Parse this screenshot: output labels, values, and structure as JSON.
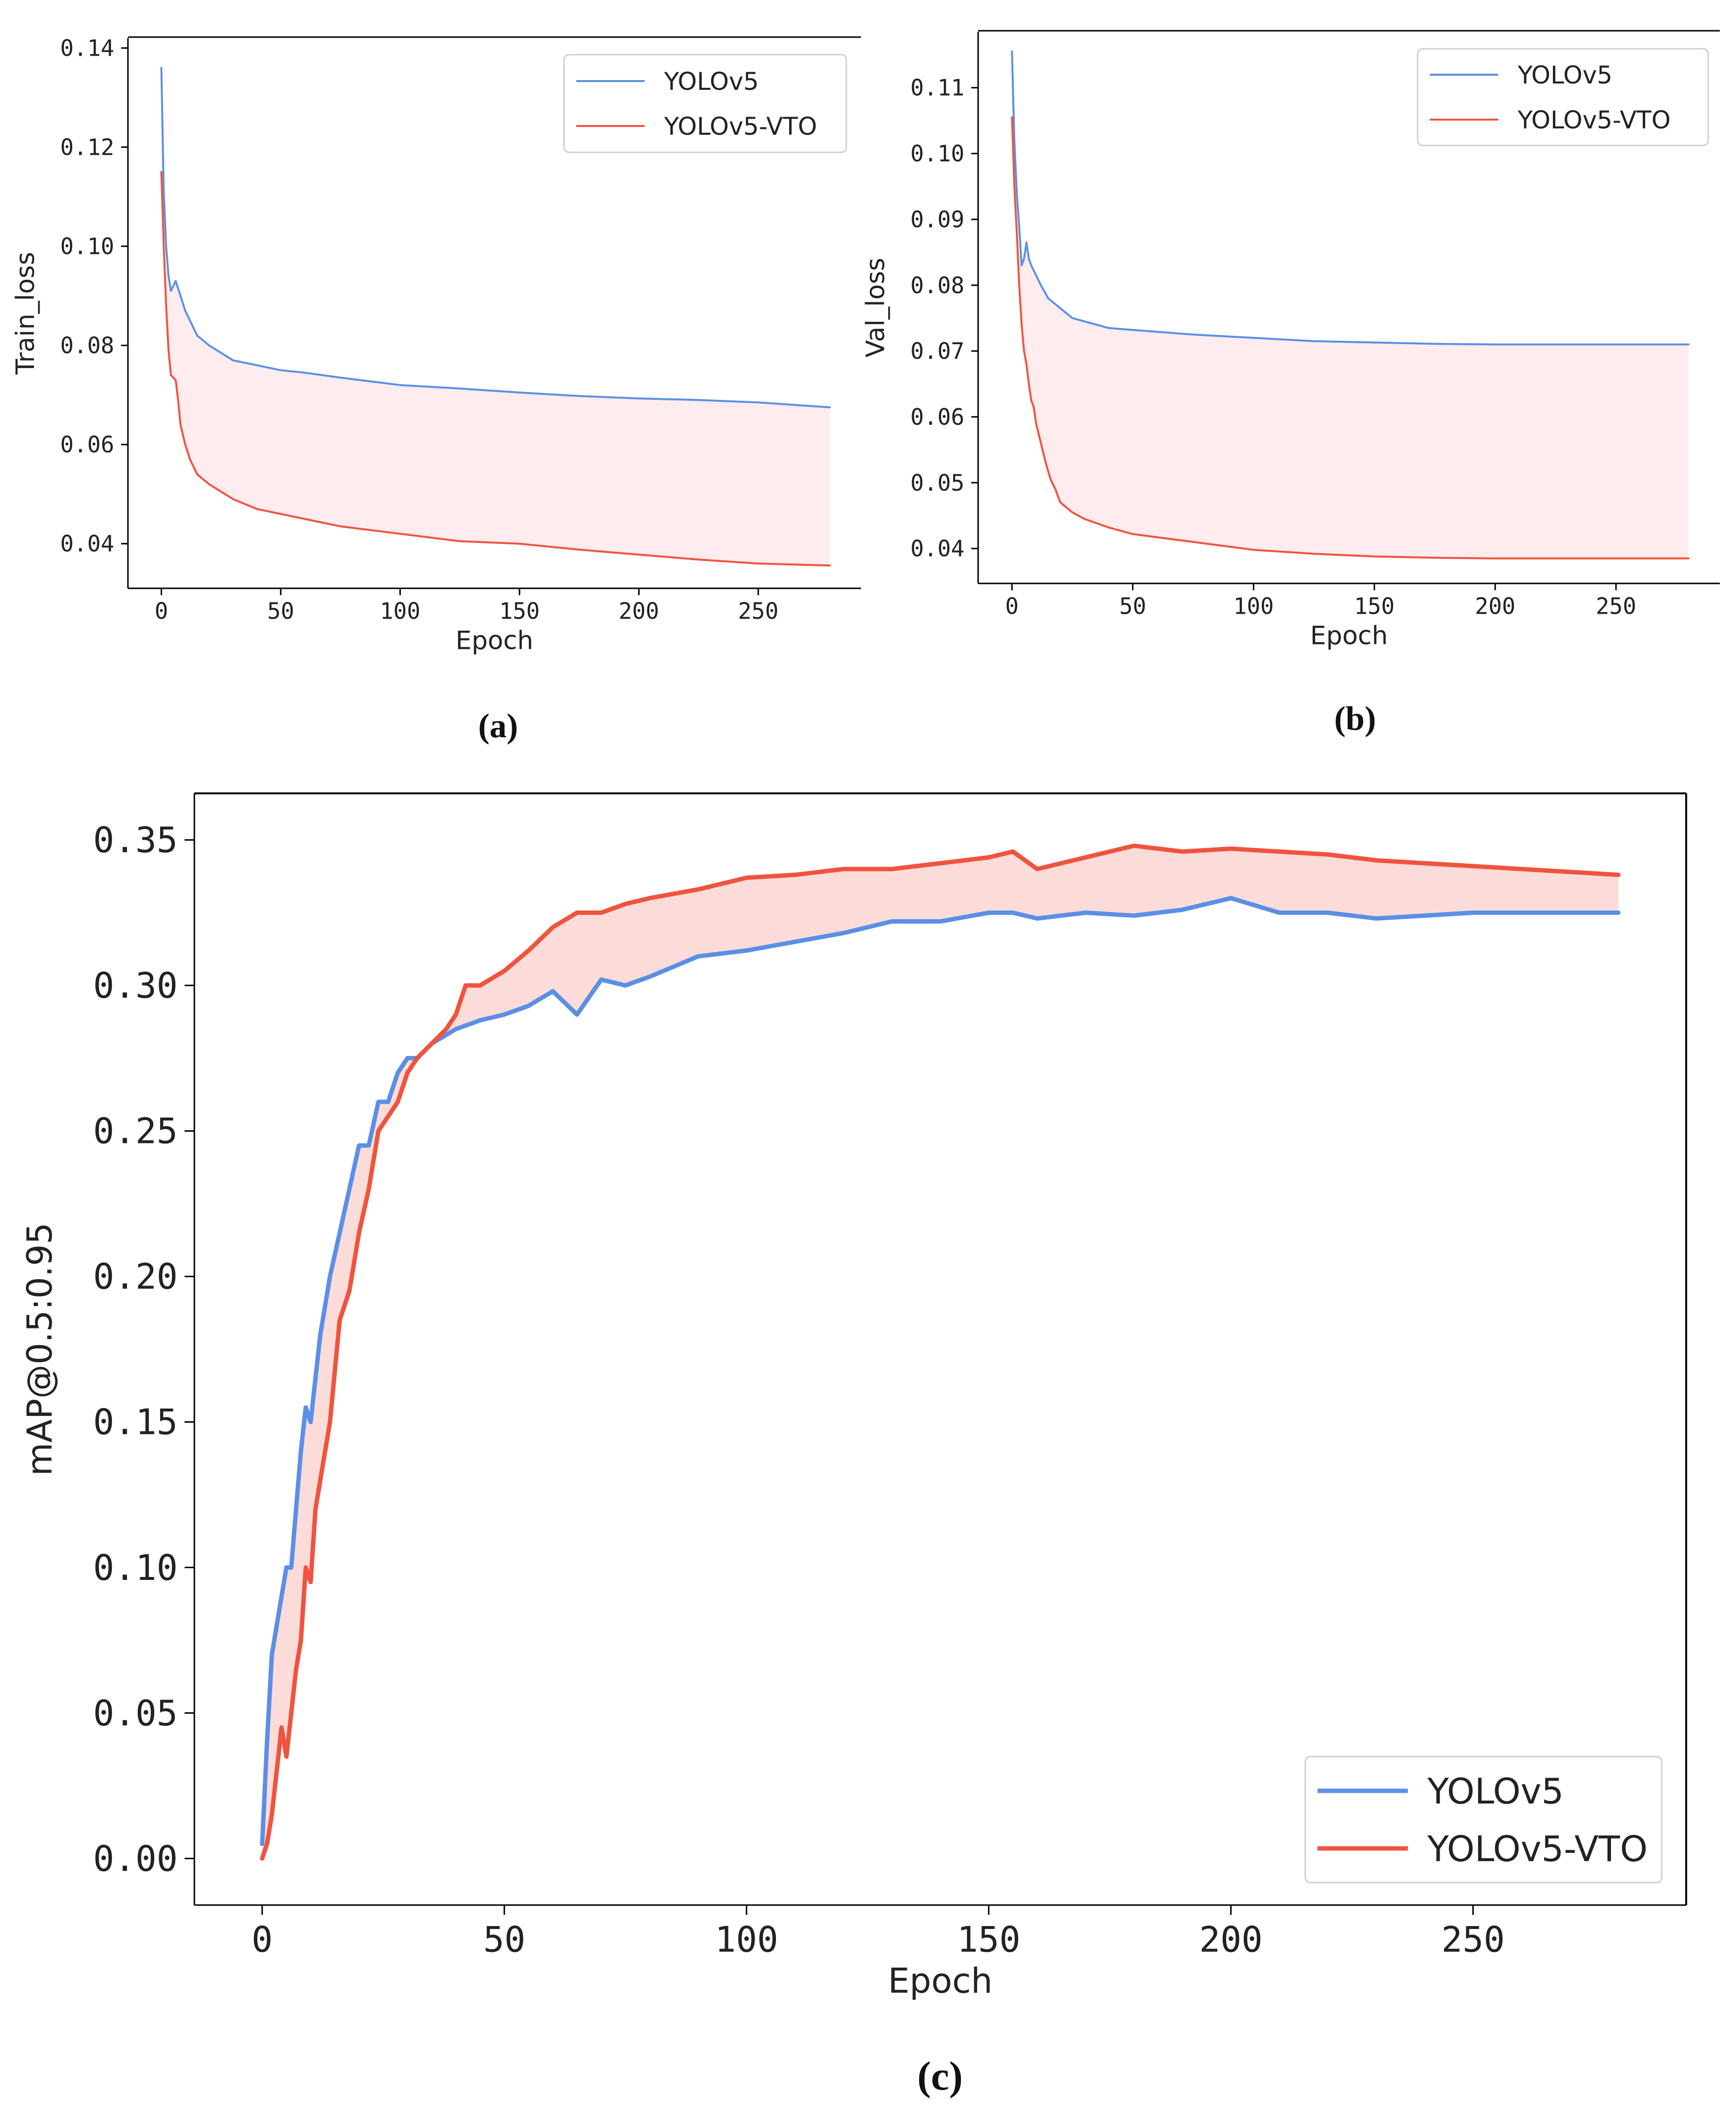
{
  "colors": {
    "yolov5": "#5b8fe6",
    "vto": "#f0533e",
    "fill_small": "#fde5e8",
    "fill_large": "#fbd0cc"
  },
  "chart_data": [
    {
      "id": "a",
      "type": "line",
      "caption": "(a)",
      "xlabel": "Epoch",
      "ylabel": "Train_loss",
      "xlim": [
        -14,
        293
      ],
      "ylim": [
        0.031,
        0.142
      ],
      "xticks": [
        0,
        50,
        100,
        150,
        200,
        250
      ],
      "xtick_labels": [
        "0",
        "50",
        "100",
        "150",
        "200",
        "250"
      ],
      "yticks": [
        0.04,
        0.06,
        0.08,
        0.1,
        0.12,
        0.14
      ],
      "ytick_labels": [
        "0.04",
        "0.06",
        "0.08",
        "0.10",
        "0.12",
        "0.14"
      ],
      "legend": {
        "placement": "top-right",
        "entries": [
          "YOLOv5",
          "YOLOv5-VTO"
        ]
      },
      "fill_between": true,
      "series": [
        {
          "name": "YOLOv5",
          "x": [
            0,
            1,
            2,
            3,
            4,
            5,
            6,
            8,
            10,
            15,
            20,
            30,
            40,
            50,
            60,
            75,
            100,
            125,
            150,
            175,
            200,
            225,
            250,
            265,
            280
          ],
          "values": [
            0.136,
            0.111,
            0.1,
            0.094,
            0.091,
            0.092,
            0.093,
            0.09,
            0.087,
            0.082,
            0.08,
            0.077,
            0.076,
            0.075,
            0.0745,
            0.0735,
            0.072,
            0.0713,
            0.0705,
            0.0698,
            0.0693,
            0.069,
            0.0685,
            0.068,
            0.0675
          ]
        },
        {
          "name": "YOLOv5-VTO",
          "x": [
            0,
            1,
            2,
            3,
            4,
            5,
            6,
            7,
            8,
            10,
            12,
            15,
            20,
            25,
            30,
            40,
            50,
            75,
            100,
            125,
            150,
            175,
            200,
            225,
            250,
            265,
            280
          ],
          "values": [
            0.115,
            0.1,
            0.088,
            0.079,
            0.074,
            0.0735,
            0.073,
            0.069,
            0.064,
            0.06,
            0.057,
            0.054,
            0.052,
            0.0505,
            0.049,
            0.047,
            0.046,
            0.0435,
            0.042,
            0.0405,
            0.04,
            0.0388,
            0.0378,
            0.0368,
            0.036,
            0.0358,
            0.0356
          ]
        }
      ]
    },
    {
      "id": "b",
      "type": "line",
      "caption": "(b)",
      "xlabel": "Epoch",
      "ylabel": "Val_loss",
      "xlim": [
        -14,
        293
      ],
      "ylim": [
        0.0347,
        0.1185
      ],
      "xticks": [
        0,
        50,
        100,
        150,
        200,
        250
      ],
      "xtick_labels": [
        "0",
        "50",
        "100",
        "150",
        "200",
        "250"
      ],
      "yticks": [
        0.04,
        0.05,
        0.06,
        0.07,
        0.08,
        0.09,
        0.1,
        0.11
      ],
      "ytick_labels": [
        "0.04",
        "0.05",
        "0.06",
        "0.07",
        "0.08",
        "0.09",
        "0.10",
        "0.11"
      ],
      "legend": {
        "placement": "top-right",
        "entries": [
          "YOLOv5",
          "YOLOv5-VTO"
        ]
      },
      "fill_between": true,
      "series": [
        {
          "name": "YOLOv5",
          "x": [
            0,
            1,
            2,
            3,
            4,
            5,
            6,
            7,
            8,
            10,
            12,
            15,
            20,
            25,
            30,
            40,
            50,
            75,
            100,
            125,
            150,
            175,
            200,
            225,
            250,
            280
          ],
          "values": [
            0.1155,
            0.102,
            0.094,
            0.089,
            0.083,
            0.084,
            0.0865,
            0.084,
            0.083,
            0.0815,
            0.08,
            0.078,
            0.0765,
            0.075,
            0.0745,
            0.0735,
            0.0732,
            0.0725,
            0.072,
            0.0715,
            0.0713,
            0.0711,
            0.071,
            0.071,
            0.071,
            0.071
          ]
        },
        {
          "name": "YOLOv5-VTO",
          "x": [
            0,
            1,
            2,
            3,
            4,
            5,
            6,
            7,
            8,
            9,
            10,
            12,
            14,
            16,
            18,
            20,
            25,
            30,
            40,
            50,
            75,
            100,
            125,
            150,
            175,
            200,
            225,
            250,
            280
          ],
          "values": [
            0.1055,
            0.095,
            0.088,
            0.08,
            0.074,
            0.07,
            0.068,
            0.065,
            0.0625,
            0.0615,
            0.059,
            0.056,
            0.053,
            0.0505,
            0.049,
            0.047,
            0.0455,
            0.0445,
            0.0432,
            0.0422,
            0.041,
            0.0398,
            0.0392,
            0.0388,
            0.0386,
            0.0385,
            0.0385,
            0.0385,
            0.0385
          ]
        }
      ]
    },
    {
      "id": "c",
      "type": "line",
      "caption": "(c)",
      "xlabel": "Epoch",
      "ylabel": "mAP@0.5:0.95",
      "xlim": [
        -14,
        294
      ],
      "ylim": [
        -0.016,
        0.366
      ],
      "xticks": [
        0,
        50,
        100,
        150,
        200,
        250
      ],
      "xtick_labels": [
        "0",
        "50",
        "100",
        "150",
        "200",
        "250"
      ],
      "yticks": [
        0.0,
        0.05,
        0.1,
        0.15,
        0.2,
        0.25,
        0.3,
        0.35
      ],
      "ytick_labels": [
        "0.00",
        "0.05",
        "0.10",
        "0.15",
        "0.20",
        "0.25",
        "0.30",
        "0.35"
      ],
      "legend": {
        "placement": "bottom-right",
        "entries": [
          "YOLOv5",
          "YOLOv5-VTO"
        ]
      },
      "fill_between": true,
      "series": [
        {
          "name": "YOLOv5",
          "x": [
            0,
            1,
            2,
            3,
            4,
            5,
            6,
            7,
            8,
            9,
            10,
            12,
            14,
            16,
            18,
            20,
            22,
            24,
            26,
            28,
            30,
            32,
            35,
            38,
            40,
            45,
            50,
            55,
            60,
            65,
            70,
            75,
            80,
            90,
            100,
            110,
            120,
            130,
            140,
            150,
            155,
            160,
            170,
            180,
            190,
            200,
            210,
            220,
            230,
            240,
            250,
            260,
            270,
            280
          ],
          "values": [
            0.005,
            0.04,
            0.07,
            0.08,
            0.09,
            0.1,
            0.1,
            0.12,
            0.14,
            0.155,
            0.15,
            0.18,
            0.2,
            0.215,
            0.23,
            0.245,
            0.245,
            0.26,
            0.26,
            0.27,
            0.275,
            0.275,
            0.28,
            0.283,
            0.285,
            0.288,
            0.29,
            0.293,
            0.298,
            0.29,
            0.302,
            0.3,
            0.303,
            0.31,
            0.312,
            0.315,
            0.318,
            0.322,
            0.322,
            0.325,
            0.325,
            0.323,
            0.325,
            0.324,
            0.326,
            0.33,
            0.325,
            0.325,
            0.323,
            0.324,
            0.325,
            0.325,
            0.325,
            0.325
          ]
        },
        {
          "name": "YOLOv5-VTO",
          "x": [
            0,
            1,
            2,
            3,
            4,
            5,
            6,
            7,
            8,
            9,
            10,
            11,
            12,
            14,
            16,
            18,
            20,
            22,
            24,
            26,
            28,
            30,
            32,
            35,
            38,
            40,
            42,
            45,
            50,
            55,
            60,
            65,
            70,
            75,
            80,
            90,
            100,
            110,
            120,
            130,
            140,
            150,
            155,
            160,
            170,
            180,
            190,
            200,
            210,
            220,
            230,
            240,
            250,
            260,
            270,
            280
          ],
          "values": [
            0.0,
            0.005,
            0.015,
            0.03,
            0.045,
            0.035,
            0.05,
            0.065,
            0.075,
            0.1,
            0.095,
            0.12,
            0.13,
            0.15,
            0.185,
            0.195,
            0.215,
            0.23,
            0.25,
            0.255,
            0.26,
            0.27,
            0.275,
            0.28,
            0.285,
            0.29,
            0.3,
            0.3,
            0.305,
            0.312,
            0.32,
            0.325,
            0.325,
            0.328,
            0.33,
            0.333,
            0.337,
            0.338,
            0.34,
            0.34,
            0.342,
            0.344,
            0.346,
            0.34,
            0.344,
            0.348,
            0.346,
            0.347,
            0.346,
            0.345,
            0.343,
            0.342,
            0.341,
            0.34,
            0.339,
            0.338
          ]
        }
      ]
    }
  ]
}
